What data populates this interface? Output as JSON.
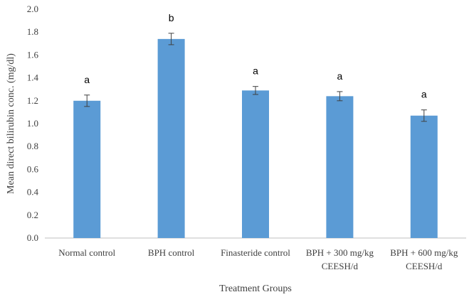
{
  "chart_data": {
    "type": "bar",
    "categories": [
      "Normal control",
      "BPH control",
      "Finasteride control",
      "BPH + 300 mg/kg CEESH/d",
      "BPH + 600 mg/kg CEESH/d"
    ],
    "category_lines": [
      [
        "Normal control"
      ],
      [
        "BPH control"
      ],
      [
        "Finasteride control"
      ],
      [
        "BPH + 300 mg/kg",
        "CEESH/d"
      ],
      [
        "BPH + 600 mg/kg",
        "CEESH/d"
      ]
    ],
    "values": [
      1.2,
      1.74,
      1.29,
      1.24,
      1.07
    ],
    "errors": [
      0.05,
      0.05,
      0.035,
      0.04,
      0.05
    ],
    "annotations": [
      "a",
      "b",
      "a",
      "a",
      "a"
    ],
    "xlabel": "Treatment Groups",
    "ylabel": "Mean direct bilirubin conc. (mg/dl)",
    "ylim": [
      0,
      2.0
    ],
    "yticks": [
      "0.0",
      "0.2",
      "0.4",
      "0.6",
      "0.8",
      "1.0",
      "1.2",
      "1.4",
      "1.6",
      "1.8",
      "2.0"
    ],
    "grid": false,
    "legend": "none",
    "colors": {
      "bar": "#5B9BD5",
      "axis": "#bfbfbf",
      "errorbar": "#404040"
    }
  }
}
